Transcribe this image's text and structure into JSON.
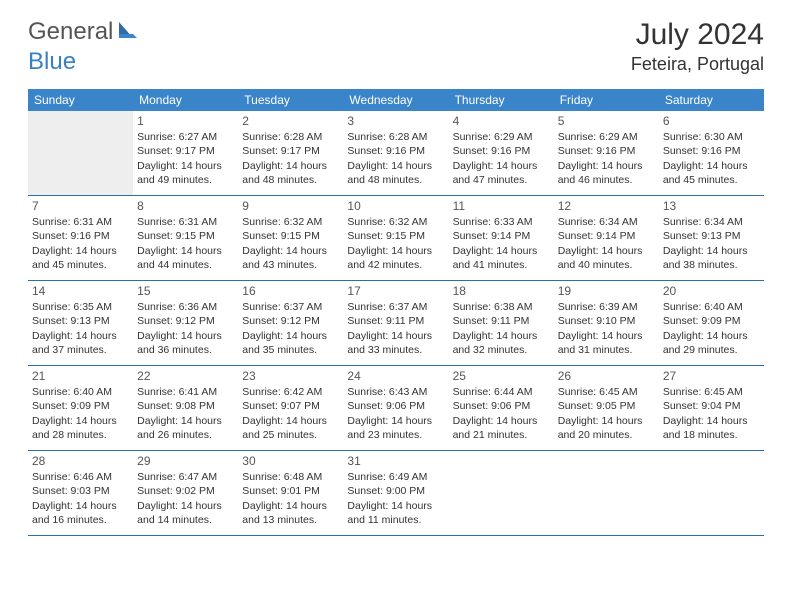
{
  "logo": {
    "general": "General",
    "blue": "Blue"
  },
  "title": "July 2024",
  "location": "Feteira, Portugal",
  "header_bg": "#3a84c9",
  "header_fg": "#ffffff",
  "border_color": "#2f6da8",
  "blank_bg": "#eeeeee",
  "days_of_week": [
    "Sunday",
    "Monday",
    "Tuesday",
    "Wednesday",
    "Thursday",
    "Friday",
    "Saturday"
  ],
  "weeks": [
    [
      {
        "blank": true
      },
      {
        "num": "1",
        "sunrise": "Sunrise: 6:27 AM",
        "sunset": "Sunset: 9:17 PM",
        "dl1": "Daylight: 14 hours",
        "dl2": "and 49 minutes."
      },
      {
        "num": "2",
        "sunrise": "Sunrise: 6:28 AM",
        "sunset": "Sunset: 9:17 PM",
        "dl1": "Daylight: 14 hours",
        "dl2": "and 48 minutes."
      },
      {
        "num": "3",
        "sunrise": "Sunrise: 6:28 AM",
        "sunset": "Sunset: 9:16 PM",
        "dl1": "Daylight: 14 hours",
        "dl2": "and 48 minutes."
      },
      {
        "num": "4",
        "sunrise": "Sunrise: 6:29 AM",
        "sunset": "Sunset: 9:16 PM",
        "dl1": "Daylight: 14 hours",
        "dl2": "and 47 minutes."
      },
      {
        "num": "5",
        "sunrise": "Sunrise: 6:29 AM",
        "sunset": "Sunset: 9:16 PM",
        "dl1": "Daylight: 14 hours",
        "dl2": "and 46 minutes."
      },
      {
        "num": "6",
        "sunrise": "Sunrise: 6:30 AM",
        "sunset": "Sunset: 9:16 PM",
        "dl1": "Daylight: 14 hours",
        "dl2": "and 45 minutes."
      }
    ],
    [
      {
        "num": "7",
        "sunrise": "Sunrise: 6:31 AM",
        "sunset": "Sunset: 9:16 PM",
        "dl1": "Daylight: 14 hours",
        "dl2": "and 45 minutes."
      },
      {
        "num": "8",
        "sunrise": "Sunrise: 6:31 AM",
        "sunset": "Sunset: 9:15 PM",
        "dl1": "Daylight: 14 hours",
        "dl2": "and 44 minutes."
      },
      {
        "num": "9",
        "sunrise": "Sunrise: 6:32 AM",
        "sunset": "Sunset: 9:15 PM",
        "dl1": "Daylight: 14 hours",
        "dl2": "and 43 minutes."
      },
      {
        "num": "10",
        "sunrise": "Sunrise: 6:32 AM",
        "sunset": "Sunset: 9:15 PM",
        "dl1": "Daylight: 14 hours",
        "dl2": "and 42 minutes."
      },
      {
        "num": "11",
        "sunrise": "Sunrise: 6:33 AM",
        "sunset": "Sunset: 9:14 PM",
        "dl1": "Daylight: 14 hours",
        "dl2": "and 41 minutes."
      },
      {
        "num": "12",
        "sunrise": "Sunrise: 6:34 AM",
        "sunset": "Sunset: 9:14 PM",
        "dl1": "Daylight: 14 hours",
        "dl2": "and 40 minutes."
      },
      {
        "num": "13",
        "sunrise": "Sunrise: 6:34 AM",
        "sunset": "Sunset: 9:13 PM",
        "dl1": "Daylight: 14 hours",
        "dl2": "and 38 minutes."
      }
    ],
    [
      {
        "num": "14",
        "sunrise": "Sunrise: 6:35 AM",
        "sunset": "Sunset: 9:13 PM",
        "dl1": "Daylight: 14 hours",
        "dl2": "and 37 minutes."
      },
      {
        "num": "15",
        "sunrise": "Sunrise: 6:36 AM",
        "sunset": "Sunset: 9:12 PM",
        "dl1": "Daylight: 14 hours",
        "dl2": "and 36 minutes."
      },
      {
        "num": "16",
        "sunrise": "Sunrise: 6:37 AM",
        "sunset": "Sunset: 9:12 PM",
        "dl1": "Daylight: 14 hours",
        "dl2": "and 35 minutes."
      },
      {
        "num": "17",
        "sunrise": "Sunrise: 6:37 AM",
        "sunset": "Sunset: 9:11 PM",
        "dl1": "Daylight: 14 hours",
        "dl2": "and 33 minutes."
      },
      {
        "num": "18",
        "sunrise": "Sunrise: 6:38 AM",
        "sunset": "Sunset: 9:11 PM",
        "dl1": "Daylight: 14 hours",
        "dl2": "and 32 minutes."
      },
      {
        "num": "19",
        "sunrise": "Sunrise: 6:39 AM",
        "sunset": "Sunset: 9:10 PM",
        "dl1": "Daylight: 14 hours",
        "dl2": "and 31 minutes."
      },
      {
        "num": "20",
        "sunrise": "Sunrise: 6:40 AM",
        "sunset": "Sunset: 9:09 PM",
        "dl1": "Daylight: 14 hours",
        "dl2": "and 29 minutes."
      }
    ],
    [
      {
        "num": "21",
        "sunrise": "Sunrise: 6:40 AM",
        "sunset": "Sunset: 9:09 PM",
        "dl1": "Daylight: 14 hours",
        "dl2": "and 28 minutes."
      },
      {
        "num": "22",
        "sunrise": "Sunrise: 6:41 AM",
        "sunset": "Sunset: 9:08 PM",
        "dl1": "Daylight: 14 hours",
        "dl2": "and 26 minutes."
      },
      {
        "num": "23",
        "sunrise": "Sunrise: 6:42 AM",
        "sunset": "Sunset: 9:07 PM",
        "dl1": "Daylight: 14 hours",
        "dl2": "and 25 minutes."
      },
      {
        "num": "24",
        "sunrise": "Sunrise: 6:43 AM",
        "sunset": "Sunset: 9:06 PM",
        "dl1": "Daylight: 14 hours",
        "dl2": "and 23 minutes."
      },
      {
        "num": "25",
        "sunrise": "Sunrise: 6:44 AM",
        "sunset": "Sunset: 9:06 PM",
        "dl1": "Daylight: 14 hours",
        "dl2": "and 21 minutes."
      },
      {
        "num": "26",
        "sunrise": "Sunrise: 6:45 AM",
        "sunset": "Sunset: 9:05 PM",
        "dl1": "Daylight: 14 hours",
        "dl2": "and 20 minutes."
      },
      {
        "num": "27",
        "sunrise": "Sunrise: 6:45 AM",
        "sunset": "Sunset: 9:04 PM",
        "dl1": "Daylight: 14 hours",
        "dl2": "and 18 minutes."
      }
    ],
    [
      {
        "num": "28",
        "sunrise": "Sunrise: 6:46 AM",
        "sunset": "Sunset: 9:03 PM",
        "dl1": "Daylight: 14 hours",
        "dl2": "and 16 minutes."
      },
      {
        "num": "29",
        "sunrise": "Sunrise: 6:47 AM",
        "sunset": "Sunset: 9:02 PM",
        "dl1": "Daylight: 14 hours",
        "dl2": "and 14 minutes."
      },
      {
        "num": "30",
        "sunrise": "Sunrise: 6:48 AM",
        "sunset": "Sunset: 9:01 PM",
        "dl1": "Daylight: 14 hours",
        "dl2": "and 13 minutes."
      },
      {
        "num": "31",
        "sunrise": "Sunrise: 6:49 AM",
        "sunset": "Sunset: 9:00 PM",
        "dl1": "Daylight: 14 hours",
        "dl2": "and 11 minutes."
      },
      {
        "blank": true,
        "trailing": true
      },
      {
        "blank": true,
        "trailing": true
      },
      {
        "blank": true,
        "trailing": true
      }
    ]
  ]
}
